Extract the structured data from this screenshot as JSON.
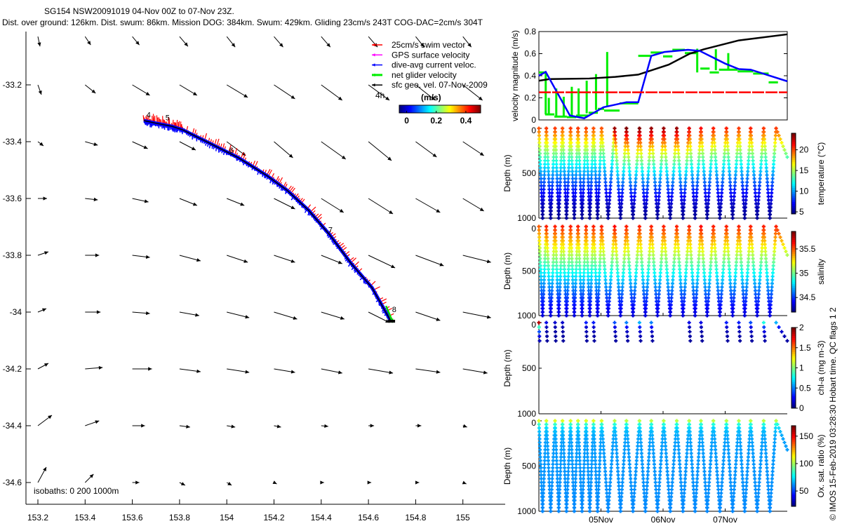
{
  "title": {
    "line1": "SG154 NSW20091019 04-Nov 00Z to 07-Nov 23Z.",
    "line2": "Dist. over ground: 126km. Dist. swum: 86km. Mission DOG: 384km. Swum: 429km. Gliding 23cm/s 243T COG-DAC=2cm/s 304T"
  },
  "legend": {
    "items": [
      {
        "label": "25cm/s swim vector",
        "color": "#ff0000"
      },
      {
        "label": "GPS surface velocity",
        "color": "#ff00ff"
      },
      {
        "label": "dive-avg current veloc.",
        "color": "#0000ff"
      },
      {
        "label": "net glider velocity",
        "color": "#00ee00"
      },
      {
        "label": "sfc geo. vel. 07-Nov-2009",
        "color": "#000000"
      }
    ],
    "colorbar_unit": "(m/s)",
    "colorbar_ticks": [
      "0",
      "0.2",
      "0.4"
    ],
    "colorbar_range": [
      -0.05,
      0.5
    ]
  },
  "map": {
    "isobaths_label": "isobaths: 0   200  1000m",
    "interval_label": "4h",
    "xticks": [
      "153.2",
      "153.4",
      "153.6",
      "153.8",
      "154",
      "154.2",
      "154.4",
      "154.6",
      "154.8",
      "155"
    ],
    "yticks": [
      "-33.2",
      "-33.4",
      "-33.6",
      "-33.8",
      "-34",
      "-34.2",
      "-34.4",
      "-34.6"
    ],
    "day_labels": [
      {
        "text": "4",
        "lon": 153.66,
        "lat": -33.315
      },
      {
        "text": "5",
        "lon": 153.74,
        "lat": -33.325
      },
      {
        "text": "6",
        "lon": 154.01,
        "lat": -33.44
      },
      {
        "text": "7",
        "lon": 154.43,
        "lat": -33.72
      },
      {
        "text": "8",
        "lon": 154.7,
        "lat": -34.0
      }
    ]
  },
  "right": {
    "vel_ylabel": "velocity magnitude (m/s)",
    "vel_yticks": [
      "0",
      "0.2",
      "0.4",
      "0.6",
      "0.8"
    ],
    "depth_label": "Depth (m)",
    "depth_ticks": [
      "0",
      "500",
      "1000"
    ],
    "date_ticks": [
      "05Nov",
      "06Nov",
      "07Nov"
    ],
    "credit": "© IMOS 15-Feb-2019 03:28:30 Hobart time. QC flags 1 2"
  },
  "chart_data": [
    {
      "type": "quiver-map",
      "xlabel": "",
      "ylabel": "",
      "xlim": [
        153.15,
        155.18
      ],
      "ylim": [
        -34.74,
        -33.0
      ],
      "arrow_lats": [
        -33.03,
        -33.2,
        -33.4,
        -33.6,
        -33.8,
        -34.0,
        -34.2,
        -34.4,
        -34.6
      ],
      "arrow_lons": [
        153.2,
        153.4,
        153.6,
        153.8,
        154.0,
        154.2,
        154.4,
        154.6,
        154.8,
        155.0
      ],
      "u": [
        [
          0.03,
          0.08,
          0.1,
          0.12,
          0.12,
          0.13,
          0.13,
          0.13,
          0.12,
          0.12
        ],
        [
          0.05,
          0.15,
          0.25,
          0.25,
          0.3,
          0.3,
          0.3,
          0.3,
          0.28,
          0.28
        ],
        [
          0.08,
          0.18,
          0.22,
          0.23,
          0.27,
          0.27,
          0.35,
          0.33,
          0.3,
          0.3
        ],
        [
          0.13,
          0.18,
          0.23,
          0.25,
          0.25,
          0.3,
          0.32,
          0.35,
          0.35,
          0.3
        ],
        [
          0.15,
          0.2,
          0.25,
          0.3,
          0.3,
          0.3,
          0.3,
          0.38,
          0.4,
          0.4
        ],
        [
          0.12,
          0.22,
          0.25,
          0.28,
          0.32,
          0.33,
          0.33,
          0.3,
          0.35,
          0.4
        ],
        [
          0.15,
          0.25,
          0.28,
          0.3,
          0.32,
          0.3,
          0.3,
          0.35,
          0.35,
          0.35
        ],
        [
          0.2,
          0.2,
          0.18,
          0.15,
          0.12,
          0.1,
          0.1,
          0.08,
          0.08,
          0.06
        ],
        [
          0.12,
          0.12,
          0.1,
          0.08,
          0.07,
          0.04,
          0.04,
          0.04,
          0.05,
          0.05
        ]
      ],
      "v": [
        [
          -0.14,
          -0.12,
          -0.12,
          -0.14,
          -0.15,
          -0.15,
          -0.15,
          -0.15,
          -0.15,
          -0.15
        ],
        [
          -0.14,
          -0.12,
          -0.15,
          -0.15,
          -0.18,
          -0.2,
          -0.22,
          -0.22,
          -0.22,
          -0.22
        ],
        [
          -0.06,
          -0.05,
          -0.1,
          -0.12,
          -0.2,
          -0.23,
          -0.25,
          -0.27,
          -0.22,
          -0.2
        ],
        [
          0.0,
          -0.02,
          -0.05,
          -0.1,
          -0.1,
          -0.15,
          -0.2,
          -0.22,
          -0.2,
          -0.18
        ],
        [
          0.05,
          0.0,
          -0.03,
          -0.08,
          -0.1,
          -0.1,
          -0.12,
          -0.18,
          -0.15,
          -0.1
        ],
        [
          0.05,
          0.0,
          -0.02,
          -0.05,
          -0.08,
          -0.1,
          -0.1,
          -0.15,
          -0.12,
          -0.08
        ],
        [
          0.08,
          0.02,
          0.0,
          -0.04,
          -0.05,
          -0.05,
          -0.06,
          -0.06,
          -0.05,
          -0.06
        ],
        [
          0.15,
          0.07,
          0.0,
          -0.02,
          -0.02,
          -0.02,
          -0.01,
          0.0,
          0.0,
          -0.02
        ],
        [
          0.22,
          0.12,
          0.0,
          -0.04,
          -0.04,
          -0.02,
          0.0,
          0.0,
          0.0,
          -0.02
        ]
      ],
      "track": {
        "lon": [
          153.649,
          153.7,
          153.768,
          153.812,
          153.931,
          154.05,
          154.169,
          154.258,
          154.347,
          154.436,
          154.525,
          154.615,
          154.695
        ],
        "lat": [
          -33.326,
          -33.335,
          -33.346,
          -33.358,
          -33.407,
          -33.457,
          -33.519,
          -33.573,
          -33.642,
          -33.728,
          -33.827,
          -33.914,
          -34.032
        ]
      }
    },
    {
      "type": "line",
      "xlabel": "",
      "ylabel": "velocity magnitude (m/s)",
      "xlim_days_from_04Nov": [
        0,
        4
      ],
      "ylim": [
        0,
        0.8
      ],
      "series": [
        {
          "name": "sfc geo. vel.",
          "color": "#000000",
          "x": [
            0,
            0.17,
            0.81,
            1.23,
            1.6,
            2.09,
            2.43,
            2.66,
            3.22,
            4.0
          ],
          "y": [
            0.355,
            0.37,
            0.375,
            0.39,
            0.41,
            0.5,
            0.6,
            0.64,
            0.72,
            0.775
          ]
        },
        {
          "name": "dive-avg current",
          "color": "#0000ff",
          "x": [
            0,
            0.11,
            0.5,
            0.73,
            1.04,
            1.41,
            1.6,
            1.81,
            2.02,
            2.4,
            2.59,
            3.0,
            3.22,
            3.41,
            4.0
          ],
          "y": [
            0.4,
            0.435,
            0.04,
            0.015,
            0.115,
            0.16,
            0.16,
            0.58,
            0.615,
            0.635,
            0.625,
            0.51,
            0.46,
            0.455,
            0.35
          ]
        },
        {
          "name": "swim 25cm/s",
          "color": "#ff0000",
          "x": [
            0,
            4
          ],
          "y": [
            0.25,
            0.25
          ]
        }
      ],
      "net_glider_segments": [
        [
          0,
          0.1,
          0.43
        ],
        [
          0.1,
          0.25,
          0.05
        ],
        [
          0.25,
          0.45,
          0.03
        ],
        [
          0.45,
          0.6,
          0.025
        ],
        [
          0.6,
          0.8,
          0.04
        ],
        [
          0.8,
          0.95,
          0.065
        ],
        [
          0.95,
          1.05,
          0.1
        ],
        [
          1.05,
          1.3,
          0.085
        ],
        [
          1.3,
          1.6,
          0.15
        ],
        [
          1.6,
          1.8,
          0.58
        ],
        [
          1.8,
          2.0,
          0.61
        ],
        [
          2.0,
          2.15,
          0.575
        ],
        [
          2.15,
          2.35,
          0.635
        ],
        [
          2.35,
          2.55,
          0.605
        ],
        [
          2.6,
          2.75,
          0.465
        ],
        [
          2.75,
          2.9,
          0.43
        ],
        [
          2.9,
          3.2,
          0.455
        ],
        [
          3.2,
          3.45,
          0.44
        ],
        [
          3.45,
          3.7,
          0.42
        ],
        [
          3.7,
          3.85,
          0.34
        ]
      ],
      "net_glider_spikes": [
        [
          0.11,
          0.05,
          0.43
        ],
        [
          0.16,
          0.05,
          0.2
        ],
        [
          0.28,
          0.03,
          0.285
        ],
        [
          0.4,
          0.03,
          0.21
        ],
        [
          0.53,
          0.04,
          0.3
        ],
        [
          0.64,
          0.04,
          0.285
        ],
        [
          0.77,
          0.06,
          0.355
        ],
        [
          0.92,
          0.09,
          0.415
        ],
        [
          1.1,
          0.12,
          0.615
        ],
        [
          2.55,
          0.43,
          0.645
        ],
        [
          2.85,
          0.45,
          0.64
        ],
        [
          3.05,
          0.45,
          0.605
        ]
      ]
    },
    {
      "type": "scatter-profiles",
      "dive_top_days": [
        0,
        0.12,
        0.26,
        0.38,
        0.51,
        0.63,
        0.76,
        0.88,
        1.01,
        1.22,
        1.41,
        1.62,
        1.81,
        2.01,
        2.22,
        2.42,
        2.61,
        2.81,
        3.02,
        3.22,
        3.41,
        3.62,
        3.82,
        4.0
      ],
      "depth_range": [
        0,
        1000
      ],
      "panels": [
        {
          "name": "temperature",
          "label": "temperature (°C)",
          "cticks": [
            "5",
            "10",
            "15",
            "20"
          ],
          "ctick_values": [
            5,
            10,
            15,
            20
          ],
          "crange": [
            4.5,
            24
          ],
          "surface": [
            20,
            20.5,
            20.5,
            20,
            20.5,
            20.5,
            20.5,
            20,
            20,
            23.5,
            24,
            24,
            23.5,
            23.5,
            23.5,
            22,
            21.5,
            21,
            21,
            20.5,
            21,
            20.5,
            20.5,
            20
          ],
          "deep": 5
        },
        {
          "name": "salinity",
          "label": "salinity",
          "cticks": [
            "34.5",
            "35",
            "35.5"
          ],
          "ctick_values": [
            34.5,
            35,
            35.5
          ],
          "crange": [
            34.2,
            35.86
          ],
          "surface": [
            35.5,
            35.6,
            35.6,
            35.6,
            35.6,
            35.6,
            35.6,
            35.6,
            35.6,
            35.65,
            35.6,
            35.6,
            35.6,
            35.6,
            35.6,
            35.6,
            35.65,
            35.6,
            35.6,
            35.6,
            35.6,
            35.6,
            35.6,
            35.5
          ],
          "deep": 34.35
        },
        {
          "name": "chl-a",
          "label": "chl-a (mg m-3)",
          "cticks": [
            "0",
            "0.5",
            "1",
            "1.5",
            "2"
          ],
          "ctick_values": [
            0,
            0.5,
            1,
            1.5,
            2
          ],
          "crange": [
            0,
            2
          ],
          "surface": [
            1.9,
            0.2,
            0.15,
            0.15,
            0.2,
            0.2,
            0.3,
            0.3,
            0.2,
            0.4,
            0.5,
            0.6,
            0.5,
            0.2,
            0.3,
            0.2,
            0.2,
            0.2,
            0.3,
            0.3,
            0.4,
            0.8,
            0.6,
            0.2
          ],
          "deep": 0.05,
          "sampled_dives": [
            0,
            1,
            2,
            3,
            6,
            7,
            9,
            10,
            11,
            12,
            15,
            16,
            18,
            19,
            20,
            21,
            22
          ]
        },
        {
          "name": "oxygen",
          "label": "Ox. sat. ratio (%)",
          "cticks": [
            "50",
            "100",
            "150"
          ],
          "ctick_values": [
            50,
            100,
            150
          ],
          "crange": [
            22,
            169
          ],
          "surface": [
            105,
            105,
            105,
            105,
            105,
            105,
            105,
            105,
            105,
            100,
            100,
            100,
            100,
            100,
            100,
            100,
            100,
            100,
            100,
            100,
            100,
            100,
            100,
            100
          ],
          "deep": 60
        }
      ]
    }
  ]
}
